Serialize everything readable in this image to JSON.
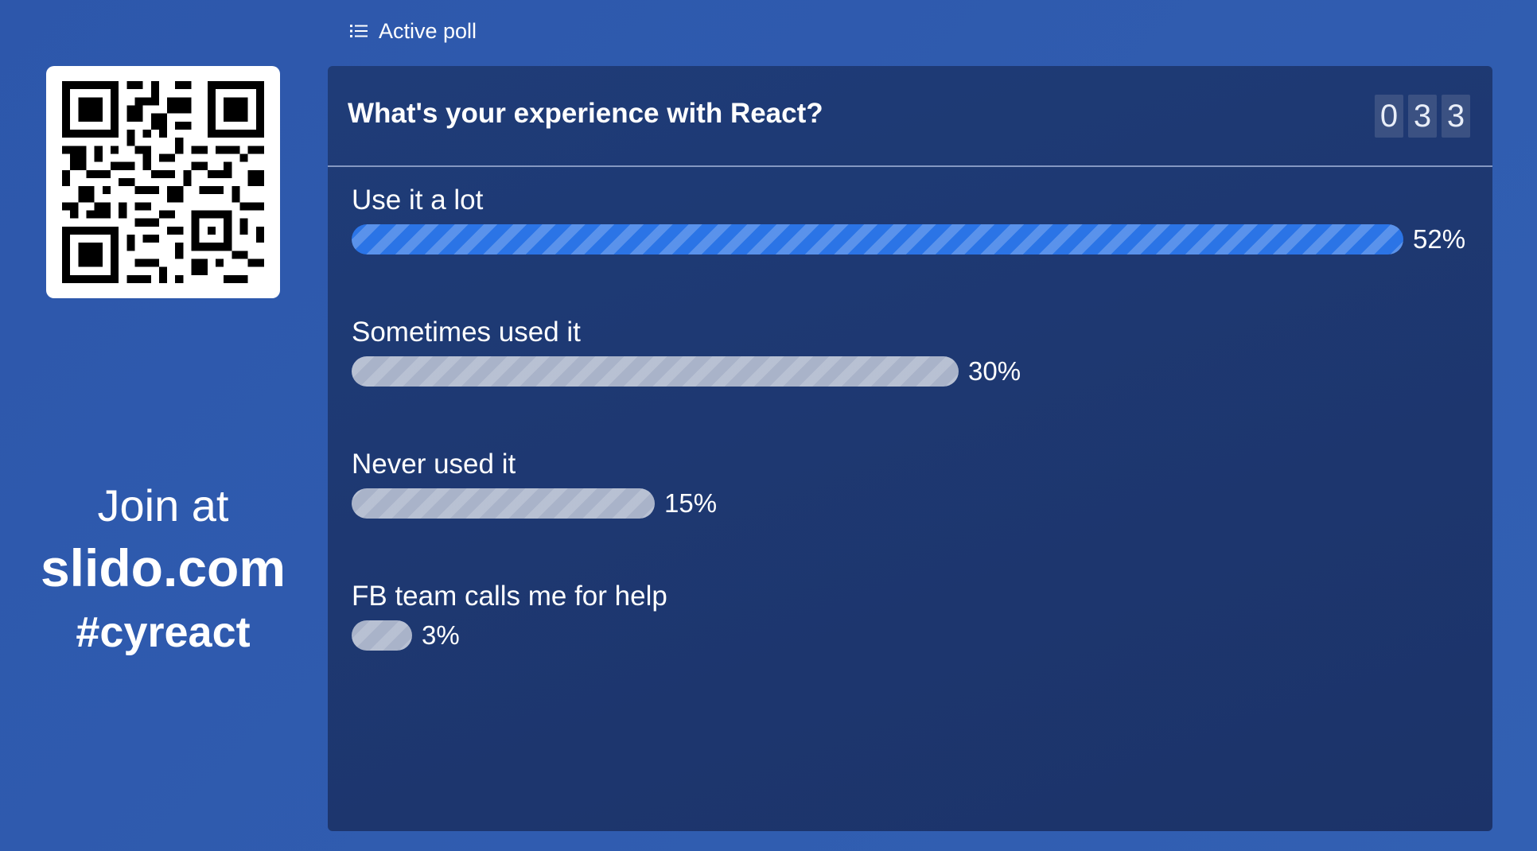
{
  "header": {
    "label": "Active poll",
    "icon": "list-icon"
  },
  "join": {
    "line1": "Join at",
    "line2": "slido.com",
    "line3": "#cyreact",
    "qr_icon": "qr-code"
  },
  "poll": {
    "question": "What's your experience with React?",
    "vote_count_digits": [
      "0",
      "3",
      "3"
    ],
    "accent_color": "#2b74e6",
    "options": [
      {
        "label": "Use it a lot",
        "percent": 52,
        "percent_label": "52%",
        "leader": true
      },
      {
        "label": "Sometimes used it",
        "percent": 30,
        "percent_label": "30%",
        "leader": false
      },
      {
        "label": "Never used it",
        "percent": 15,
        "percent_label": "15%",
        "leader": false
      },
      {
        "label": "FB team calls me for help",
        "percent": 3,
        "percent_label": "3%",
        "leader": false
      }
    ]
  }
}
